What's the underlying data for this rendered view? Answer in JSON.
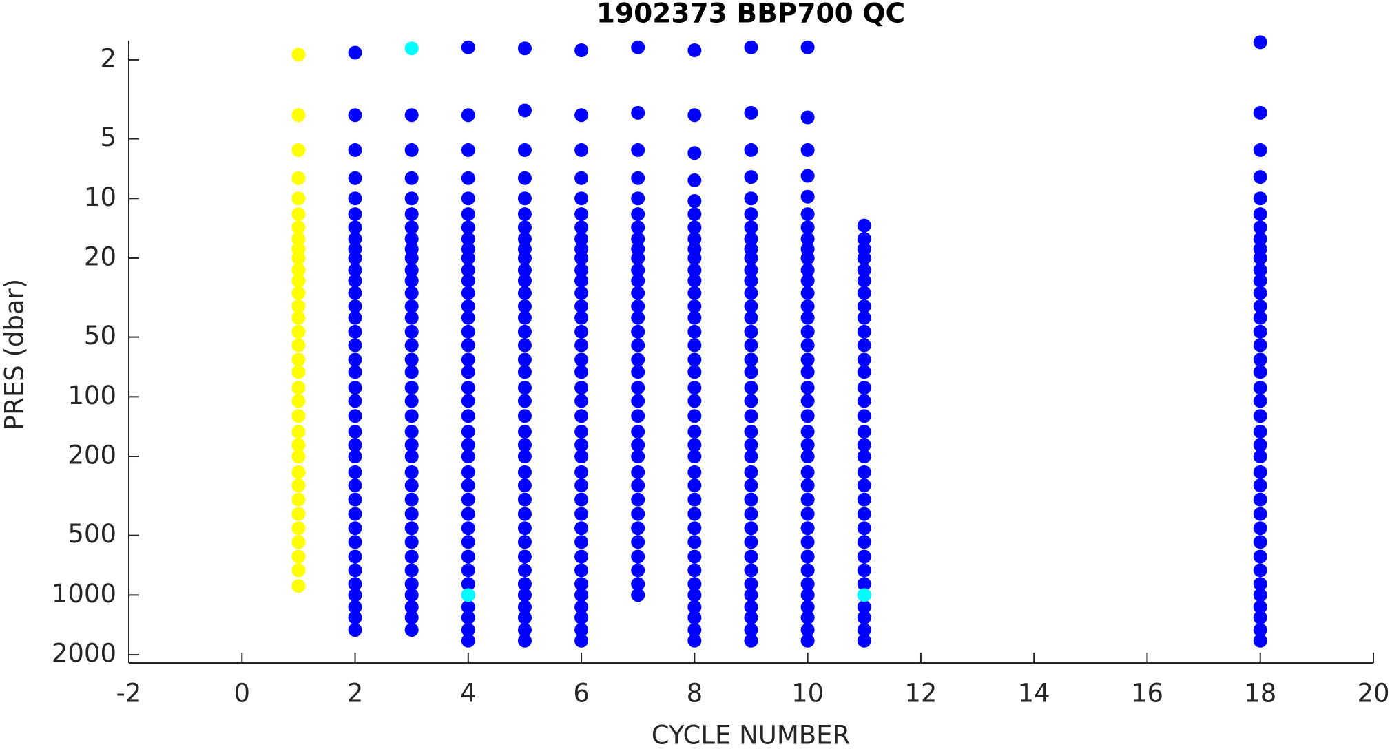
{
  "chart_data": {
    "type": "scatter",
    "title": "1902373 BBP700 QC",
    "x_label": "CYCLE NUMBER",
    "y_label": "PRES (dbar)",
    "xlim": [
      -2,
      20
    ],
    "xticks": [
      -2,
      0,
      2,
      4,
      6,
      8,
      10,
      12,
      14,
      16,
      18,
      20
    ],
    "ylim": [
      1.6,
      2200
    ],
    "yticks": [
      2,
      5,
      10,
      20,
      50,
      100,
      200,
      500,
      1000,
      2000
    ],
    "y_log": true,
    "y_reversed": true,
    "grid": false,
    "series": [
      {
        "color": "#ffff00",
        "x": 1,
        "values": [
          1.88,
          3.8,
          5.7,
          7.9,
          10,
          12,
          14,
          16,
          18,
          20,
          23,
          26,
          30,
          35,
          40,
          47,
          55,
          65,
          75,
          90,
          105,
          125,
          150,
          175,
          200,
          240,
          280,
          330,
          390,
          460,
          540,
          640,
          750,
          900
        ]
      },
      {
        "color": "#0000ff",
        "x": 2,
        "values": [
          1.84,
          3.8,
          5.7,
          7.9,
          10,
          12,
          14,
          16,
          18,
          20,
          23,
          26,
          30,
          35,
          40,
          47,
          55,
          65,
          75,
          90,
          105,
          125,
          150,
          175,
          200,
          240,
          280,
          330,
          390,
          460,
          540,
          640,
          750,
          880,
          1000,
          1150,
          1300,
          1500
        ]
      },
      {
        "color": "#0000ff",
        "x": 3,
        "values": [
          3.8,
          5.7,
          7.9,
          10,
          12,
          14,
          16,
          18,
          20,
          23,
          26,
          30,
          35,
          40,
          47,
          55,
          65,
          75,
          90,
          105,
          125,
          150,
          175,
          200,
          240,
          280,
          330,
          390,
          460,
          540,
          640,
          750,
          880,
          1000,
          1150,
          1300,
          1500
        ]
      },
      {
        "color": "#0000ff",
        "x": 4,
        "values": [
          1.73,
          3.8,
          5.7,
          7.9,
          10,
          12,
          14,
          16,
          18,
          20,
          23,
          26,
          30,
          35,
          40,
          47,
          55,
          65,
          75,
          90,
          105,
          125,
          150,
          175,
          200,
          240,
          280,
          330,
          390,
          460,
          540,
          640,
          750,
          880,
          1000,
          1150,
          1300,
          1500,
          1700
        ]
      },
      {
        "color": "#0000ff",
        "x": 5,
        "values": [
          1.75,
          3.6,
          5.7,
          7.9,
          10,
          12,
          14,
          16,
          18,
          20,
          23,
          26,
          30,
          35,
          40,
          47,
          55,
          65,
          75,
          90,
          105,
          125,
          150,
          175,
          200,
          240,
          280,
          330,
          390,
          460,
          540,
          640,
          750,
          880,
          1000,
          1150,
          1300,
          1500,
          1700
        ]
      },
      {
        "color": "#0000ff",
        "x": 6,
        "values": [
          1.79,
          3.8,
          5.7,
          7.9,
          10,
          12,
          14,
          16,
          18,
          20,
          23,
          26,
          30,
          35,
          40,
          47,
          55,
          65,
          75,
          90,
          105,
          125,
          150,
          175,
          200,
          240,
          280,
          330,
          390,
          460,
          540,
          640,
          750,
          880,
          1000,
          1150,
          1300,
          1500,
          1700
        ]
      },
      {
        "color": "#0000ff",
        "x": 7,
        "values": [
          1.73,
          3.7,
          5.7,
          7.9,
          10,
          12,
          14,
          16,
          18,
          20,
          23,
          26,
          30,
          35,
          40,
          47,
          55,
          65,
          75,
          90,
          105,
          125,
          150,
          175,
          200,
          240,
          280,
          330,
          390,
          460,
          540,
          640,
          750,
          880,
          1000
        ]
      },
      {
        "color": "#0000ff",
        "x": 8,
        "values": [
          1.79,
          3.8,
          5.9,
          8.1,
          10.3,
          12,
          14,
          16,
          18,
          20,
          23,
          26,
          30,
          35,
          40,
          47,
          55,
          65,
          75,
          90,
          105,
          125,
          150,
          175,
          200,
          240,
          280,
          330,
          390,
          460,
          540,
          640,
          750,
          880,
          1000,
          1150,
          1300,
          1500,
          1700
        ]
      },
      {
        "color": "#0000ff",
        "x": 9,
        "values": [
          1.73,
          3.7,
          5.7,
          7.8,
          10,
          12,
          14,
          16,
          18,
          20,
          23,
          26,
          30,
          35,
          40,
          47,
          55,
          65,
          75,
          90,
          105,
          125,
          150,
          175,
          200,
          240,
          280,
          330,
          390,
          460,
          540,
          640,
          750,
          880,
          1000,
          1150,
          1300,
          1500,
          1700
        ]
      },
      {
        "color": "#0000ff",
        "x": 10,
        "values": [
          1.73,
          3.9,
          5.7,
          7.7,
          9.8,
          12,
          14,
          16,
          18,
          20,
          23,
          26,
          30,
          35,
          40,
          47,
          55,
          65,
          75,
          90,
          105,
          125,
          150,
          175,
          200,
          240,
          280,
          330,
          390,
          460,
          540,
          640,
          750,
          880,
          1000,
          1150,
          1300,
          1500,
          1700
        ]
      },
      {
        "color": "#0000ff",
        "x": 11,
        "values": [
          13.7,
          16,
          18,
          20,
          23,
          26,
          30,
          35,
          40,
          47,
          55,
          65,
          75,
          90,
          105,
          125,
          150,
          175,
          200,
          240,
          280,
          330,
          390,
          460,
          540,
          640,
          750,
          880,
          1000,
          1150,
          1300,
          1500,
          1700
        ]
      },
      {
        "color": "#0000ff",
        "x": 18,
        "values": [
          1.63,
          3.7,
          5.7,
          7.8,
          10,
          12,
          14,
          16,
          18,
          20,
          23,
          26,
          30,
          35,
          40,
          47,
          55,
          65,
          75,
          90,
          105,
          125,
          150,
          175,
          200,
          240,
          280,
          330,
          390,
          460,
          540,
          640,
          750,
          880,
          1000,
          1150,
          1300,
          1500,
          1700
        ]
      },
      {
        "color": "#00ffff",
        "x": 3,
        "values": [
          1.75
        ]
      },
      {
        "color": "#00ffff",
        "x": 4,
        "values": [
          1000
        ]
      },
      {
        "color": "#00ffff",
        "x": 11,
        "values": [
          1000
        ]
      }
    ]
  }
}
